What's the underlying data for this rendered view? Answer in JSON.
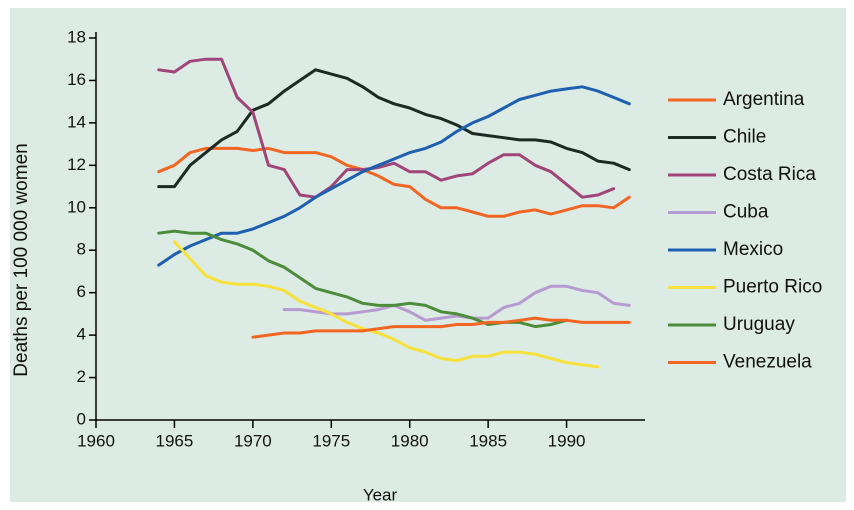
{
  "chart_data": {
    "type": "line",
    "x_label": "Year",
    "y_label": "Deaths per 100 000 women",
    "x": [
      1964,
      1965,
      1966,
      1967,
      1968,
      1969,
      1970,
      1971,
      1972,
      1973,
      1974,
      1975,
      1976,
      1977,
      1978,
      1979,
      1980,
      1981,
      1982,
      1983,
      1984,
      1985,
      1986,
      1987,
      1988,
      1989,
      1990,
      1991,
      1992,
      1993,
      1994
    ],
    "xlim": [
      1960,
      1995
    ],
    "xticks": [
      1960,
      1965,
      1970,
      1975,
      1980,
      1985,
      1990
    ],
    "ylim": [
      0,
      18
    ],
    "yticks": [
      0,
      2,
      4,
      6,
      8,
      10,
      12,
      14,
      16,
      18
    ],
    "grid": false,
    "legend": "right",
    "series": [
      {
        "name": "Argentina",
        "color": "#f26522",
        "values": [
          11.7,
          12.0,
          12.6,
          12.8,
          12.8,
          12.8,
          12.7,
          12.8,
          12.6,
          12.6,
          12.6,
          12.4,
          12.0,
          11.8,
          11.5,
          11.1,
          11.0,
          10.4,
          10.0,
          10.0,
          9.8,
          9.6,
          9.6,
          9.8,
          9.9,
          9.7,
          9.9,
          10.1,
          10.1,
          10.0,
          10.5
        ]
      },
      {
        "name": "Chile",
        "color": "#1c2a22",
        "values": [
          11.0,
          11.0,
          12.0,
          12.6,
          13.2,
          13.6,
          14.6,
          14.9,
          15.5,
          16.0,
          16.5,
          16.3,
          16.1,
          15.7,
          15.2,
          14.9,
          14.7,
          14.4,
          14.2,
          13.9,
          13.5,
          13.4,
          13.3,
          13.2,
          13.2,
          13.1,
          12.8,
          12.6,
          12.2,
          12.1,
          11.8
        ]
      },
      {
        "name": "Costa Rica",
        "color": "#a0457a",
        "values": [
          16.5,
          16.4,
          16.9,
          17.0,
          17.0,
          15.2,
          14.5,
          12.0,
          11.8,
          10.6,
          10.5,
          11.0,
          11.8,
          11.8,
          11.9,
          12.1,
          11.7,
          11.7,
          11.3,
          11.5,
          11.6,
          12.1,
          12.5,
          12.5,
          12.0,
          11.7,
          11.1,
          10.5,
          10.6,
          10.9,
          null
        ]
      },
      {
        "name": "Cuba",
        "color": "#b79ad0",
        "values": [
          null,
          null,
          null,
          null,
          null,
          null,
          null,
          null,
          5.2,
          5.2,
          5.1,
          5.0,
          5.0,
          5.1,
          5.2,
          5.4,
          5.1,
          4.7,
          4.8,
          4.9,
          4.8,
          4.8,
          5.3,
          5.5,
          6.0,
          6.3,
          6.3,
          6.1,
          6.0,
          5.5,
          5.4
        ]
      },
      {
        "name": "Mexico",
        "color": "#1f5fb0",
        "values": [
          7.3,
          7.8,
          8.2,
          8.5,
          8.8,
          8.8,
          9.0,
          9.3,
          9.6,
          10.0,
          10.5,
          10.9,
          11.3,
          11.7,
          12.0,
          12.3,
          12.6,
          12.8,
          13.1,
          13.6,
          14.0,
          14.3,
          14.7,
          15.1,
          15.3,
          15.5,
          15.6,
          15.7,
          15.5,
          15.2,
          14.9
        ]
      },
      {
        "name": "Puerto Rico",
        "color": "#f7e13a",
        "values": [
          null,
          8.4,
          7.6,
          6.8,
          6.5,
          6.4,
          6.4,
          6.3,
          6.1,
          5.6,
          5.3,
          5.0,
          4.6,
          4.3,
          4.1,
          3.8,
          3.4,
          3.2,
          2.9,
          2.8,
          3.0,
          3.0,
          3.2,
          3.2,
          3.1,
          2.9,
          2.7,
          2.6,
          2.5,
          null,
          null
        ]
      },
      {
        "name": "Uruguay",
        "color": "#4c8c3a",
        "values": [
          8.8,
          8.9,
          8.8,
          8.8,
          8.5,
          8.3,
          8.0,
          7.5,
          7.2,
          6.7,
          6.2,
          6.0,
          5.8,
          5.5,
          5.4,
          5.4,
          5.5,
          5.4,
          5.1,
          5.0,
          4.8,
          4.5,
          4.6,
          4.6,
          4.4,
          4.5,
          4.7,
          null,
          null,
          null,
          null
        ]
      },
      {
        "name": "Venezuela",
        "color": "#f26522",
        "values": [
          null,
          null,
          null,
          null,
          null,
          null,
          3.9,
          4.0,
          4.1,
          4.1,
          4.2,
          4.2,
          4.2,
          4.2,
          4.3,
          4.4,
          4.4,
          4.4,
          4.4,
          4.5,
          4.5,
          4.6,
          4.6,
          4.7,
          4.8,
          4.7,
          4.7,
          4.6,
          4.6,
          4.6,
          4.6
        ]
      }
    ]
  }
}
